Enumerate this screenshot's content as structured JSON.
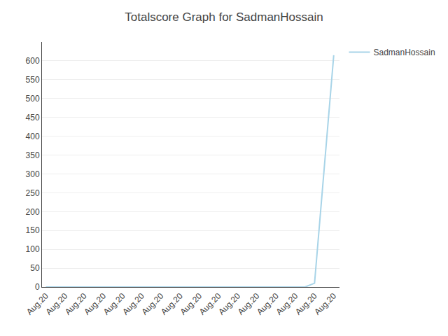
{
  "chart_data": {
    "type": "line",
    "title": "Totalscore Graph for SadmanHossain",
    "x": [
      0,
      1,
      2,
      3,
      4,
      5,
      6,
      7,
      8,
      9,
      10,
      11,
      12,
      13,
      13.5,
      14,
      15
    ],
    "series": [
      {
        "name": "SadmanHossain",
        "color": "#a8d4e8",
        "values": [
          0,
          0,
          0,
          0,
          0,
          0,
          0,
          0,
          0,
          0,
          0,
          0,
          0,
          0,
          0,
          10,
          615
        ]
      }
    ],
    "xlim": [
      -0.2,
      15.3
    ],
    "xticks": [
      {
        "value": 0,
        "label": "Aug.20"
      },
      {
        "value": 1,
        "label": "Aug.20"
      },
      {
        "value": 2,
        "label": "Aug.20"
      },
      {
        "value": 3,
        "label": "Aug.20"
      },
      {
        "value": 4,
        "label": "Aug.20"
      },
      {
        "value": 5,
        "label": "Aug.20"
      },
      {
        "value": 6,
        "label": "Aug.20"
      },
      {
        "value": 7,
        "label": "Aug.20"
      },
      {
        "value": 8,
        "label": "Aug.20"
      },
      {
        "value": 9,
        "label": "Aug.20"
      },
      {
        "value": 10,
        "label": "Aug.20"
      },
      {
        "value": 11,
        "label": "Aug.20"
      },
      {
        "value": 12,
        "label": "Aug.20"
      },
      {
        "value": 13,
        "label": "Aug.20"
      },
      {
        "value": 14,
        "label": "Aug.20"
      },
      {
        "value": 15,
        "label": "Aug.20"
      }
    ],
    "ylim": [
      0,
      650
    ],
    "yticks": [
      0,
      50,
      100,
      150,
      200,
      250,
      300,
      350,
      400,
      450,
      500,
      550,
      600
    ],
    "grid": "y",
    "legend": "upper right"
  }
}
